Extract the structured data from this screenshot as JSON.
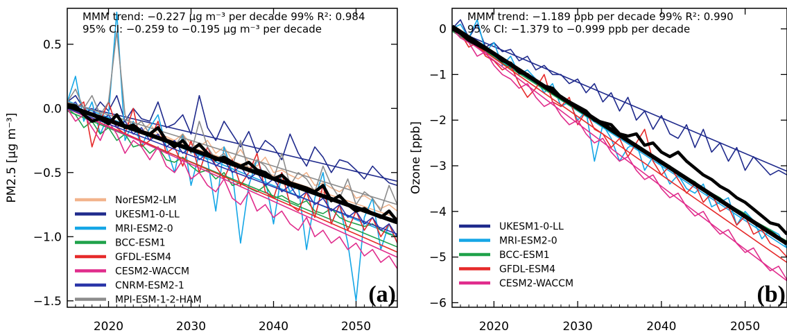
{
  "chart_data": [
    {
      "panel": "a",
      "panel_label": "(a)",
      "type": "line",
      "ylabel": "PM2.5 [µg m⁻³]",
      "xlim": [
        2015,
        2055
      ],
      "ylim": [
        -1.55,
        0.78
      ],
      "xticks": [
        2020,
        2030,
        2040,
        2050
      ],
      "xtick_labels": [
        "2020",
        "2030",
        "2040",
        "2050"
      ],
      "yticks": [
        0.5,
        0.0,
        -0.5,
        -1.0,
        -1.5
      ],
      "ytick_labels": [
        "0.5",
        "0.0",
        "−0.5",
        "−1.0",
        "−1.5"
      ],
      "trend_line1": "MMM  trend: −0.227 µg m⁻³ per decade  99%  R²:  0.984",
      "trend_line2": "95% CI:        −0.259  to  −0.195 µg m⁻³ per decade",
      "legend_placement": "bottom-left",
      "series": [
        {
          "name": "NorESM2-LM",
          "color": "#f2b48c",
          "slope": -0.0221,
          "intercept": 0.03,
          "values": [
            0.05,
            0.02,
            -0.03,
            -0.1,
            -0.05,
            -0.08,
            -0.12,
            -0.1,
            -0.15,
            -0.18,
            -0.12,
            -0.2,
            -0.22,
            -0.25,
            -0.2,
            -0.28,
            -0.3,
            -0.25,
            -0.35,
            -0.3,
            -0.4,
            -0.32,
            -0.42,
            -0.45,
            -0.38,
            -0.5,
            -0.48,
            -0.52,
            -0.55,
            -0.5,
            -0.6,
            -0.58,
            -0.62,
            -0.65,
            -0.6,
            -0.7,
            -0.68,
            -0.72,
            -0.78,
            -0.75,
            -0.8
          ]
        },
        {
          "name": "UKESM1-0-LL",
          "color": "#1f2a8c",
          "slope": -0.0152,
          "intercept": 0.04,
          "values": [
            0.05,
            0.1,
            0.0,
            -0.05,
            0.05,
            -0.02,
            0.1,
            -0.1,
            0.0,
            -0.08,
            -0.1,
            0.05,
            -0.15,
            -0.12,
            -0.05,
            -0.2,
            0.1,
            -0.15,
            -0.25,
            -0.1,
            -0.2,
            -0.3,
            -0.18,
            -0.35,
            -0.25,
            -0.3,
            -0.4,
            -0.2,
            -0.35,
            -0.45,
            -0.3,
            -0.38,
            -0.5,
            -0.4,
            -0.42,
            -0.48,
            -0.55,
            -0.45,
            -0.52,
            -0.58,
            -0.6
          ]
        },
        {
          "name": "MRI-ESM2-0",
          "color": "#15a6e6",
          "slope": -0.0265,
          "intercept": 0.06,
          "values": [
            0.05,
            0.25,
            -0.1,
            0.05,
            -0.2,
            -0.05,
            0.75,
            -0.25,
            -0.1,
            -0.3,
            -0.15,
            -0.05,
            -0.3,
            -0.5,
            -0.2,
            -0.6,
            -0.35,
            -0.4,
            -0.8,
            -0.3,
            -0.5,
            -1.05,
            -0.6,
            -0.4,
            -0.55,
            -0.9,
            -0.5,
            -0.65,
            -0.6,
            -1.1,
            -0.7,
            -0.5,
            -0.9,
            -0.75,
            -1.05,
            -1.5,
            -0.85,
            -0.7,
            -1.1,
            -0.9,
            -1.05
          ]
        },
        {
          "name": "BCC-ESM1",
          "color": "#1fa24a",
          "slope": -0.0265,
          "intercept": -0.02,
          "values": [
            0.0,
            -0.05,
            -0.15,
            -0.1,
            -0.2,
            -0.15,
            -0.25,
            -0.2,
            -0.3,
            -0.28,
            -0.35,
            -0.3,
            -0.4,
            -0.42,
            -0.38,
            -0.45,
            -0.5,
            -0.48,
            -0.55,
            -0.5,
            -0.6,
            -0.58,
            -0.62,
            -0.65,
            -0.6,
            -0.7,
            -0.68,
            -0.72,
            -0.75,
            -0.72,
            -0.8,
            -0.82,
            -0.78,
            -0.85,
            -0.88,
            -0.9,
            -0.92,
            -0.9,
            -0.95,
            -0.98,
            -1.0
          ]
        },
        {
          "name": "GFDL-ESM4",
          "color": "#e62a2a",
          "slope": -0.028,
          "intercept": 0.0,
          "values": [
            0.05,
            0.0,
            0.05,
            -0.3,
            -0.1,
            0.05,
            -0.15,
            -0.2,
            0.0,
            -0.3,
            -0.25,
            -0.1,
            -0.35,
            -0.3,
            -0.45,
            -0.25,
            -0.5,
            -0.3,
            -0.45,
            -0.55,
            -0.4,
            -0.6,
            -0.5,
            -0.35,
            -0.65,
            -0.7,
            -0.5,
            -0.75,
            -0.8,
            -0.65,
            -0.85,
            -0.6,
            -0.9,
            -0.75,
            -0.95,
            -0.8,
            -0.95,
            -0.85,
            -1.0,
            -0.9,
            -1.05
          ]
        },
        {
          "name": "CESM2-WACCM",
          "color": "#e02c8c",
          "slope": -0.029,
          "intercept": 0.0,
          "values": [
            0.0,
            -0.1,
            -0.05,
            -0.15,
            -0.25,
            -0.1,
            -0.2,
            -0.35,
            -0.25,
            -0.3,
            -0.4,
            -0.3,
            -0.45,
            -0.5,
            -0.4,
            -0.55,
            -0.5,
            -0.6,
            -0.65,
            -0.55,
            -0.7,
            -0.75,
            -0.65,
            -0.8,
            -0.75,
            -0.85,
            -0.8,
            -0.9,
            -0.95,
            -0.85,
            -1.0,
            -0.95,
            -1.05,
            -1.0,
            -1.1,
            -1.05,
            -1.15,
            -1.1,
            -1.2,
            -1.15,
            -1.25
          ]
        },
        {
          "name": "CNRM-ESM2-1",
          "color": "#2a35a8",
          "slope": -0.0245,
          "intercept": 0.0,
          "values": [
            0.0,
            0.05,
            -0.05,
            0.0,
            -0.1,
            -0.05,
            -0.15,
            -0.1,
            -0.2,
            -0.15,
            -0.25,
            -0.2,
            -0.3,
            -0.25,
            -0.35,
            -0.3,
            -0.4,
            -0.35,
            -0.45,
            -0.4,
            -0.5,
            -0.45,
            -0.55,
            -0.5,
            -0.6,
            -0.55,
            -0.65,
            -0.6,
            -0.7,
            -0.65,
            -0.75,
            -0.7,
            -0.8,
            -0.75,
            -0.85,
            -0.8,
            -0.9,
            -0.85,
            -0.95,
            -0.9,
            -1.0
          ]
        },
        {
          "name": "MPI-ESM-1-2-HAM",
          "color": "#8c8c8c",
          "slope": -0.02,
          "intercept": 0.05,
          "values": [
            0.05,
            0.15,
            0.0,
            0.1,
            -0.05,
            0.05,
            0.6,
            -0.05,
            -0.15,
            -0.1,
            -0.2,
            -0.15,
            -0.25,
            -0.3,
            -0.2,
            -0.35,
            -0.1,
            -0.3,
            -0.4,
            -0.35,
            -0.45,
            -0.25,
            -0.5,
            -0.4,
            -0.45,
            -0.55,
            -0.35,
            -0.6,
            -0.5,
            -0.55,
            -0.65,
            -0.45,
            -0.6,
            -0.7,
            -0.55,
            -0.75,
            -0.65,
            -0.7,
            -0.8,
            -0.6,
            -0.75
          ]
        },
        {
          "name": "MMM",
          "color": "#000000",
          "mmm": true,
          "slope": -0.0227,
          "intercept": 0.02,
          "values": [
            0.03,
            0.02,
            -0.05,
            -0.1,
            -0.08,
            -0.12,
            -0.05,
            -0.15,
            -0.13,
            -0.18,
            -0.2,
            -0.15,
            -0.25,
            -0.3,
            -0.25,
            -0.33,
            -0.28,
            -0.35,
            -0.4,
            -0.38,
            -0.42,
            -0.45,
            -0.42,
            -0.48,
            -0.5,
            -0.55,
            -0.52,
            -0.58,
            -0.6,
            -0.62,
            -0.65,
            -0.6,
            -0.72,
            -0.68,
            -0.75,
            -0.8,
            -0.78,
            -0.82,
            -0.85,
            -0.8,
            -0.88
          ]
        }
      ]
    },
    {
      "panel": "b",
      "panel_label": "(b)",
      "type": "line",
      "ylabel": "Ozone [ppb]",
      "xlim": [
        2015,
        2055
      ],
      "ylim": [
        -6.1,
        0.45
      ],
      "xticks": [
        2020,
        2030,
        2040,
        2050
      ],
      "xtick_labels": [
        "2020",
        "2030",
        "2040",
        "2050"
      ],
      "yticks": [
        0,
        -1,
        -2,
        -3,
        -4,
        -5,
        -6
      ],
      "ytick_labels": [
        "0",
        "−1",
        "−2",
        "−3",
        "−4",
        "−5",
        "−6"
      ],
      "trend_line1": "MMM  trend: −1.189 ppb per decade  99%  R²:  0.990",
      "trend_line2": "95% CI:        −1.379  to  −0.999  ppb per decade",
      "legend_placement": "bottom-left",
      "series": [
        {
          "name": "UKESM1-0-LL",
          "color": "#1f2a8c",
          "slope": -0.078,
          "intercept": 0.0,
          "values": [
            0.0,
            0.2,
            -0.2,
            0.1,
            -0.4,
            -0.3,
            -0.5,
            -0.45,
            -0.7,
            -0.6,
            -0.9,
            -0.8,
            -1.0,
            -1.0,
            -1.2,
            -1.1,
            -1.4,
            -1.2,
            -1.6,
            -1.4,
            -1.8,
            -1.5,
            -2.0,
            -1.8,
            -2.2,
            -1.9,
            -2.3,
            -2.4,
            -2.1,
            -2.6,
            -2.2,
            -2.7,
            -2.5,
            -2.9,
            -2.6,
            -3.1,
            -2.8,
            -3.0,
            -3.2,
            -3.1,
            -3.2
          ]
        },
        {
          "name": "MRI-ESM2-0",
          "color": "#15a6e6",
          "slope": -0.12,
          "intercept": 0.0,
          "values": [
            0.0,
            0.1,
            -0.2,
            0.2,
            -0.5,
            -0.3,
            -0.8,
            -0.6,
            -1.0,
            -0.9,
            -1.1,
            -1.4,
            -1.2,
            -1.7,
            -1.6,
            -2.0,
            -1.8,
            -2.9,
            -2.1,
            -2.4,
            -2.9,
            -2.6,
            -2.5,
            -3.1,
            -2.8,
            -3.0,
            -3.4,
            -3.2,
            -3.5,
            -3.6,
            -3.4,
            -3.9,
            -3.8,
            -3.7,
            -4.3,
            -4.0,
            -4.2,
            -4.6,
            -4.4,
            -4.5,
            -4.8
          ]
        },
        {
          "name": "BCC-ESM1",
          "color": "#1fa24a",
          "slope": -0.116,
          "intercept": -0.05,
          "values": [
            -0.05,
            -0.1,
            -0.3,
            -0.4,
            -0.5,
            -0.6,
            -0.7,
            -0.8,
            -0.95,
            -1.05,
            -1.15,
            -1.3,
            -1.4,
            -1.5,
            -1.6,
            -1.75,
            -1.85,
            -1.95,
            -2.1,
            -2.2,
            -2.3,
            -2.45,
            -2.55,
            -2.65,
            -2.8,
            -2.9,
            -3.0,
            -3.15,
            -3.25,
            -3.35,
            -3.5,
            -3.6,
            -3.7,
            -3.85,
            -3.95,
            -4.05,
            -4.2,
            -4.3,
            -4.4,
            -4.55,
            -4.65
          ]
        },
        {
          "name": "GFDL-ESM4",
          "color": "#e62a2a",
          "slope": -0.128,
          "intercept": 0.0,
          "values": [
            0.0,
            -0.1,
            -0.4,
            -0.3,
            -0.6,
            -0.7,
            -0.9,
            -0.8,
            -1.2,
            -1.5,
            -1.3,
            -1.0,
            -1.6,
            -1.7,
            -1.5,
            -2.1,
            -1.8,
            -2.2,
            -2.3,
            -2.6,
            -2.4,
            -2.8,
            -2.5,
            -2.2,
            -2.9,
            -3.2,
            -3.0,
            -3.3,
            -3.6,
            -3.4,
            -3.8,
            -3.6,
            -4.0,
            -3.9,
            -4.3,
            -4.1,
            -4.5,
            -4.4,
            -4.7,
            -4.8,
            -5.0
          ]
        },
        {
          "name": "CESM2-WACCM",
          "color": "#e02c8c",
          "slope": -0.138,
          "intercept": 0.0,
          "values": [
            0.0,
            -0.2,
            -0.3,
            -0.6,
            -0.5,
            -0.8,
            -1.0,
            -1.1,
            -1.3,
            -1.2,
            -1.5,
            -1.7,
            -1.6,
            -1.9,
            -2.1,
            -2.0,
            -2.3,
            -2.5,
            -2.4,
            -2.7,
            -2.9,
            -2.8,
            -3.1,
            -3.3,
            -3.2,
            -3.5,
            -3.7,
            -3.6,
            -3.9,
            -4.1,
            -4.0,
            -4.3,
            -4.5,
            -4.4,
            -4.7,
            -4.9,
            -4.8,
            -5.1,
            -5.3,
            -5.2,
            -5.5
          ]
        },
        {
          "name": "MMM",
          "color": "#000000",
          "mmm": true,
          "slope": -0.1189,
          "intercept": 0.05,
          "values": [
            0.0,
            -0.1,
            -0.25,
            -0.35,
            -0.45,
            -0.55,
            -0.7,
            -0.75,
            -0.95,
            -1.0,
            -1.15,
            -1.25,
            -1.3,
            -1.5,
            -1.6,
            -1.7,
            -1.8,
            -2.0,
            -2.05,
            -2.1,
            -2.3,
            -2.35,
            -2.3,
            -2.55,
            -2.5,
            -2.7,
            -2.8,
            -2.7,
            -2.9,
            -3.05,
            -3.2,
            -3.3,
            -3.45,
            -3.55,
            -3.7,
            -3.8,
            -3.95,
            -4.1,
            -4.25,
            -4.3,
            -4.5
          ]
        }
      ]
    }
  ]
}
